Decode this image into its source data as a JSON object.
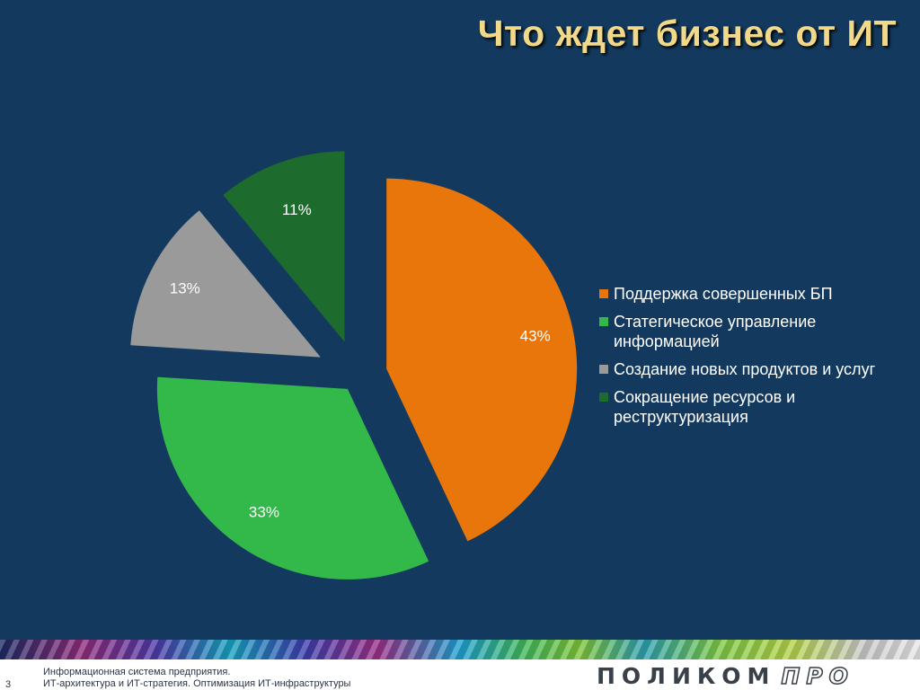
{
  "slide": {
    "title": "Что ждет бизнес от ИТ",
    "background_color": "#133a5e",
    "title_color": "#f2d98a"
  },
  "chart_data": {
    "type": "pie",
    "exploded": true,
    "labels": [
      "Поддержка совершенных БП",
      "Статегическое управление информацией",
      "Создание новых продуктов и услуг",
      "Сокращение ресурсов и реструктуризация"
    ],
    "values": [
      43,
      33,
      13,
      11
    ],
    "data_labels": [
      "43%",
      "33%",
      "13%",
      "11%"
    ],
    "colors": [
      "#e8760a",
      "#33b84a",
      "#9a9a9a",
      "#1e6b2e"
    ],
    "legend_position": "right",
    "label_color": "#ffffff"
  },
  "footer": {
    "page_number": "3",
    "line1": "Информационная система предприятия.",
    "line2": "ИТ-архитектура и ИТ-стратегия. Оптимизация ИТ-инфраструктуры",
    "logo_main": "ПОЛИКОМ",
    "logo_sub": "ПРО"
  }
}
